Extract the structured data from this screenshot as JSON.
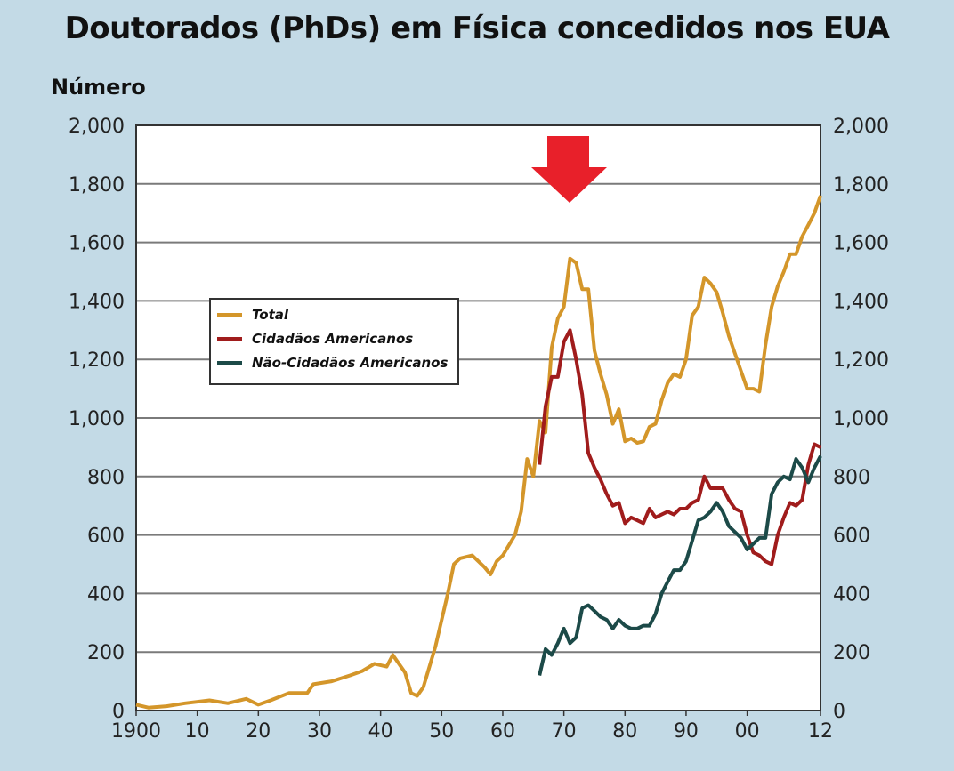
{
  "chart_data": {
    "type": "line",
    "title": "Doutorados (PhDs) em Física concedidos nos EUA",
    "ylabel": "Número",
    "xlabel": "",
    "xlim": [
      1900,
      2012
    ],
    "ylim": [
      0,
      2000
    ],
    "grid": "horizontal",
    "legend_placement": "center-left",
    "x_tick_labels": [
      "1900",
      "10",
      "20",
      "30",
      "40",
      "50",
      "60",
      "70",
      "80",
      "90",
      "00",
      "12"
    ],
    "x_tick_values": [
      1900,
      1910,
      1920,
      1930,
      1940,
      1950,
      1960,
      1970,
      1980,
      1990,
      2000,
      2012
    ],
    "y_ticks": [
      0,
      200,
      400,
      600,
      800,
      1000,
      1200,
      1400,
      1600,
      1800,
      2000
    ],
    "y_tick_labels": [
      "0",
      "200",
      "400",
      "600",
      "800",
      "1,000",
      "1,200",
      "1,400",
      "1,600",
      "1,800",
      "2,000"
    ],
    "annotation": "red-down-arrow-at-1970-peak",
    "series": [
      {
        "name": "Total",
        "color": "#d4962a",
        "x": [
          1900,
          1902,
          1905,
          1908,
          1912,
          1915,
          1918,
          1920,
          1922,
          1925,
          1928,
          1929,
          1932,
          1935,
          1937,
          1939,
          1941,
          1942,
          1944,
          1945,
          1946,
          1947,
          1949,
          1951,
          1952,
          1953,
          1955,
          1957,
          1958,
          1959,
          1960,
          1962,
          1963,
          1964,
          1965,
          1966,
          1967,
          1968,
          1969,
          1970,
          1971,
          1972,
          1973,
          1974,
          1975,
          1976,
          1977,
          1978,
          1979,
          1980,
          1981,
          1982,
          1983,
          1984,
          1985,
          1986,
          1987,
          1988,
          1989,
          1990,
          1991,
          1992,
          1993,
          1994,
          1995,
          1996,
          1997,
          1998,
          1999,
          2000,
          2001,
          2002,
          2003,
          2004,
          2005,
          2006,
          2007,
          2008,
          2009,
          2010,
          2011,
          2012
        ],
        "values": [
          20,
          10,
          15,
          25,
          35,
          25,
          40,
          20,
          35,
          60,
          60,
          90,
          100,
          120,
          135,
          160,
          150,
          190,
          130,
          60,
          50,
          80,
          220,
          400,
          500,
          520,
          530,
          490,
          465,
          510,
          530,
          600,
          680,
          860,
          800,
          990,
          950,
          1240,
          1340,
          1380,
          1545,
          1530,
          1440,
          1440,
          1230,
          1150,
          1080,
          980,
          1030,
          920,
          930,
          915,
          920,
          970,
          980,
          1060,
          1120,
          1150,
          1140,
          1200,
          1350,
          1380,
          1480,
          1460,
          1430,
          1360,
          1280,
          1220,
          1160,
          1100,
          1100,
          1090,
          1250,
          1380,
          1450,
          1500,
          1560,
          1560,
          1620,
          1660,
          1700,
          1760
        ]
      },
      {
        "name": "Cidadãos Americanos",
        "color": "#a01c1c",
        "x": [
          1966,
          1967,
          1968,
          1969,
          1970,
          1971,
          1972,
          1973,
          1974,
          1975,
          1976,
          1977,
          1978,
          1979,
          1980,
          1981,
          1982,
          1983,
          1984,
          1985,
          1986,
          1987,
          1988,
          1989,
          1990,
          1991,
          1992,
          1993,
          1994,
          1995,
          1996,
          1997,
          1998,
          1999,
          2000,
          2001,
          2002,
          2003,
          2004,
          2005,
          2006,
          2007,
          2008,
          2009,
          2010,
          2011,
          2012
        ],
        "values": [
          840,
          1040,
          1140,
          1140,
          1260,
          1300,
          1200,
          1080,
          880,
          830,
          790,
          740,
          700,
          710,
          640,
          660,
          650,
          640,
          690,
          660,
          670,
          680,
          670,
          690,
          690,
          710,
          720,
          800,
          760,
          760,
          760,
          720,
          690,
          680,
          600,
          540,
          530,
          510,
          500,
          600,
          660,
          710,
          700,
          720,
          840,
          910,
          900
        ]
      },
      {
        "name": "Não-Cidadãos Americanos",
        "color": "#1c4a48",
        "x": [
          1966,
          1967,
          1968,
          1969,
          1970,
          1971,
          1972,
          1973,
          1974,
          1975,
          1976,
          1977,
          1978,
          1979,
          1980,
          1981,
          1982,
          1983,
          1984,
          1985,
          1986,
          1987,
          1988,
          1989,
          1990,
          1991,
          1992,
          1993,
          1994,
          1995,
          1996,
          1997,
          1998,
          1999,
          2000,
          2001,
          2002,
          2003,
          2004,
          2005,
          2006,
          2007,
          2008,
          2009,
          2010,
          2011,
          2012
        ],
        "values": [
          120,
          210,
          190,
          230,
          280,
          230,
          250,
          350,
          360,
          340,
          320,
          310,
          280,
          310,
          290,
          280,
          280,
          290,
          290,
          330,
          400,
          440,
          480,
          480,
          510,
          580,
          650,
          660,
          680,
          710,
          680,
          630,
          610,
          590,
          550,
          570,
          590,
          590,
          740,
          780,
          800,
          790,
          860,
          830,
          780,
          830,
          870
        ]
      }
    ]
  },
  "colors": {
    "background": "#c3dae6",
    "plot_background": "#ffffff",
    "arrow": "#e8202a"
  }
}
